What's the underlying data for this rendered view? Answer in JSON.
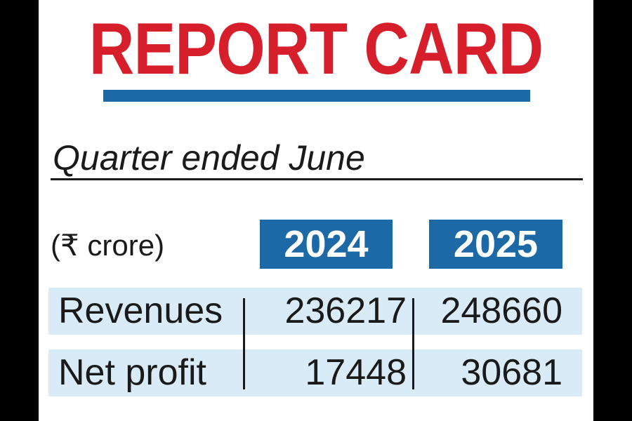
{
  "title": "REPORT CARD",
  "subtitle": "Quarter ended June",
  "unit": "(₹ crore)",
  "years": [
    "2024",
    "2025"
  ],
  "rows": [
    {
      "label": "Revenues",
      "values": [
        "236217",
        "248660"
      ]
    },
    {
      "label": "Net profit",
      "values": [
        "17448",
        "30681"
      ]
    }
  ],
  "colors": {
    "title": "#d71f2b",
    "accent": "#1d69a6",
    "row_background": "#d8ebf6"
  }
}
